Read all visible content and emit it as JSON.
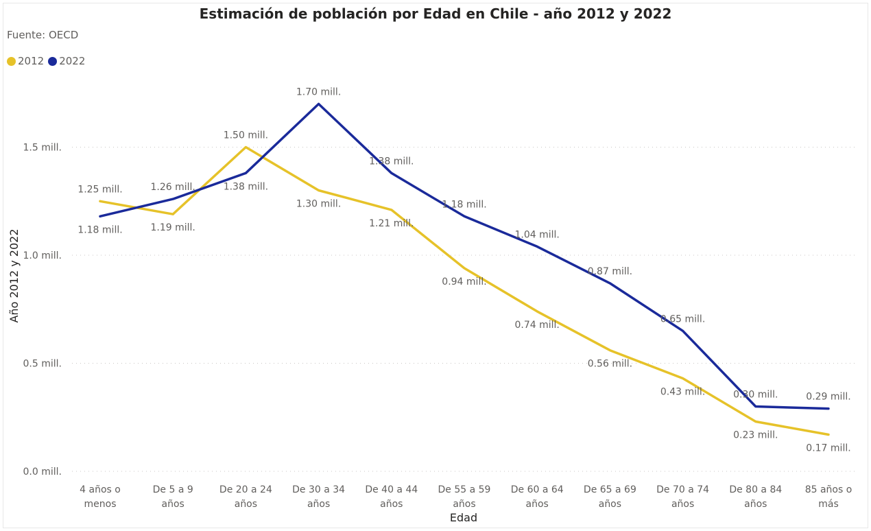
{
  "chart_data": {
    "type": "line",
    "title": "Estimación de población por Edad en Chile - año 2012 y 2022",
    "subtitle": "Fuente: OECD",
    "xlabel": "Edad",
    "ylabel": "Año 2012 y 2022",
    "categories": [
      [
        "4 años o",
        "menos"
      ],
      [
        "De 5 a 9",
        "años"
      ],
      [
        "De 20 a 24",
        "años"
      ],
      [
        "De 30 a 34",
        "años"
      ],
      [
        "De 40 a 44",
        "años"
      ],
      [
        "De 55 a 59",
        "años"
      ],
      [
        "De 60 a 64",
        "años"
      ],
      [
        "De 65 a 69",
        "años"
      ],
      [
        "De 70 a 74",
        "años"
      ],
      [
        "De 80 a 84",
        "años"
      ],
      [
        "85 años o",
        "más"
      ]
    ],
    "yticks": [
      {
        "value": 0.0,
        "label": "0.0 mill."
      },
      {
        "value": 0.5,
        "label": "0.5 mill."
      },
      {
        "value": 1.0,
        "label": "1.0 mill."
      },
      {
        "value": 1.5,
        "label": "1.5 mill."
      }
    ],
    "ylim": [
      0,
      1.75
    ],
    "grid": true,
    "legend_position": "top-left",
    "series": [
      {
        "name": "2012",
        "color": "#E6C229",
        "values": [
          1.25,
          1.19,
          1.5,
          1.3,
          1.21,
          0.94,
          0.74,
          0.56,
          0.43,
          0.23,
          0.17
        ],
        "labels": [
          "1.25 mill.",
          "1.19 mill.",
          "1.50 mill.",
          "1.30 mill.",
          "1.21 mill.",
          "0.94 mill.",
          "0.74 mill.",
          "0.56 mill.",
          "0.43 mill.",
          "0.23 mill.",
          "0.17 mill."
        ]
      },
      {
        "name": "2022",
        "color": "#1A2A9A",
        "values": [
          1.18,
          1.26,
          1.38,
          1.7,
          1.38,
          1.18,
          1.04,
          0.87,
          0.65,
          0.3,
          0.29
        ],
        "labels": [
          "1.18 mill.",
          "1.26 mill.",
          "1.38 mill.",
          "1.70 mill.",
          "1.38 mill.",
          "1.18 mill.",
          "1.04 mill.",
          "0.87 mill.",
          "0.65 mill.",
          "0.30 mill.",
          "0.29 mill."
        ]
      }
    ]
  }
}
